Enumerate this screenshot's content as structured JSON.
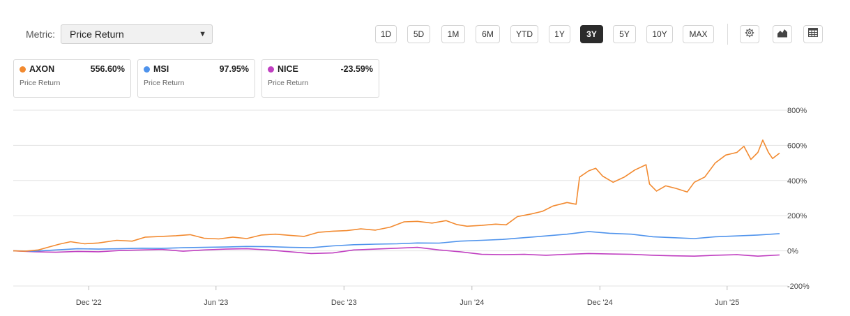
{
  "metric": {
    "label": "Metric:",
    "value": "Price Return"
  },
  "ranges": [
    "1D",
    "5D",
    "1M",
    "6M",
    "YTD",
    "1Y",
    "3Y",
    "5Y",
    "10Y",
    "MAX"
  ],
  "active_range": "3Y",
  "tools": [
    "settings-icon",
    "chart-type-icon",
    "table-icon"
  ],
  "cards": [
    {
      "ticker": "AXON",
      "value": "556.60%",
      "metric": "Price Return",
      "color": "#f28a30"
    },
    {
      "ticker": "MSI",
      "value": "97.95%",
      "metric": "Price Return",
      "color": "#4f93ec"
    },
    {
      "ticker": "NICE",
      "value": "-23.59%",
      "metric": "Price Return",
      "color": "#c03fc1"
    }
  ],
  "chart_data": {
    "type": "line",
    "x_ticks": [
      "Dec '22",
      "Jun '23",
      "Dec '23",
      "Jun '24",
      "Dec '24",
      "Jun '25"
    ],
    "x_tick_dates": [
      "2022-12-01",
      "2023-06-01",
      "2023-12-01",
      "2024-06-01",
      "2024-12-01",
      "2025-06-01"
    ],
    "xlim": [
      "2022-08-15",
      "2025-08-15"
    ],
    "y_ticks": [
      "800%",
      "600%",
      "400%",
      "200%",
      "0%",
      "-200%"
    ],
    "ylim": [
      -200,
      800
    ],
    "grid": true,
    "series": [
      {
        "name": "AXON",
        "color": "#f28a30",
        "points": [
          [
            "2022-08-15",
            0
          ],
          [
            "2022-09-01",
            -2
          ],
          [
            "2022-09-20",
            5
          ],
          [
            "2022-10-05",
            22
          ],
          [
            "2022-10-20",
            38
          ],
          [
            "2022-11-05",
            52
          ],
          [
            "2022-11-25",
            40
          ],
          [
            "2022-12-15",
            45
          ],
          [
            "2023-01-10",
            60
          ],
          [
            "2023-02-01",
            55
          ],
          [
            "2023-02-20",
            78
          ],
          [
            "2023-03-15",
            82
          ],
          [
            "2023-04-05",
            86
          ],
          [
            "2023-04-25",
            92
          ],
          [
            "2023-05-15",
            72
          ],
          [
            "2023-06-05",
            68
          ],
          [
            "2023-06-25",
            78
          ],
          [
            "2023-07-15",
            70
          ],
          [
            "2023-08-05",
            90
          ],
          [
            "2023-08-25",
            95
          ],
          [
            "2023-09-15",
            88
          ],
          [
            "2023-10-05",
            82
          ],
          [
            "2023-10-25",
            105
          ],
          [
            "2023-11-15",
            112
          ],
          [
            "2023-12-05",
            115
          ],
          [
            "2023-12-25",
            125
          ],
          [
            "2024-01-15",
            118
          ],
          [
            "2024-02-05",
            135
          ],
          [
            "2024-02-25",
            165
          ],
          [
            "2024-03-15",
            168
          ],
          [
            "2024-04-05",
            158
          ],
          [
            "2024-04-25",
            172
          ],
          [
            "2024-05-10",
            150
          ],
          [
            "2024-05-25",
            140
          ],
          [
            "2024-06-15",
            145
          ],
          [
            "2024-07-05",
            152
          ],
          [
            "2024-07-20",
            148
          ],
          [
            "2024-08-05",
            195
          ],
          [
            "2024-08-25",
            210
          ],
          [
            "2024-09-10",
            225
          ],
          [
            "2024-09-25",
            255
          ],
          [
            "2024-10-15",
            275
          ],
          [
            "2024-10-28",
            265
          ],
          [
            "2024-11-02",
            420
          ],
          [
            "2024-11-15",
            455
          ],
          [
            "2024-11-25",
            470
          ],
          [
            "2024-12-05",
            425
          ],
          [
            "2024-12-20",
            390
          ],
          [
            "2025-01-05",
            420
          ],
          [
            "2025-01-20",
            460
          ],
          [
            "2025-02-05",
            490
          ],
          [
            "2025-02-10",
            380
          ],
          [
            "2025-02-20",
            340
          ],
          [
            "2025-03-05",
            370
          ],
          [
            "2025-03-20",
            355
          ],
          [
            "2025-04-05",
            335
          ],
          [
            "2025-04-15",
            390
          ],
          [
            "2025-04-30",
            420
          ],
          [
            "2025-05-15",
            500
          ],
          [
            "2025-05-30",
            545
          ],
          [
            "2025-06-15",
            560
          ],
          [
            "2025-06-25",
            595
          ],
          [
            "2025-07-05",
            520
          ],
          [
            "2025-07-15",
            560
          ],
          [
            "2025-07-22",
            630
          ],
          [
            "2025-07-30",
            560
          ],
          [
            "2025-08-05",
            525
          ],
          [
            "2025-08-15",
            556
          ]
        ]
      },
      {
        "name": "MSI",
        "color": "#4f93ec",
        "points": [
          [
            "2022-08-15",
            0
          ],
          [
            "2022-09-15",
            -2
          ],
          [
            "2022-10-15",
            5
          ],
          [
            "2022-11-15",
            12
          ],
          [
            "2022-12-15",
            10
          ],
          [
            "2023-01-15",
            12
          ],
          [
            "2023-02-15",
            15
          ],
          [
            "2023-03-15",
            14
          ],
          [
            "2023-04-15",
            18
          ],
          [
            "2023-05-15",
            20
          ],
          [
            "2023-06-15",
            22
          ],
          [
            "2023-07-15",
            25
          ],
          [
            "2023-08-15",
            24
          ],
          [
            "2023-09-15",
            20
          ],
          [
            "2023-10-15",
            18
          ],
          [
            "2023-11-15",
            28
          ],
          [
            "2023-12-15",
            35
          ],
          [
            "2024-01-15",
            38
          ],
          [
            "2024-02-15",
            40
          ],
          [
            "2024-03-15",
            45
          ],
          [
            "2024-04-15",
            44
          ],
          [
            "2024-05-15",
            55
          ],
          [
            "2024-06-15",
            60
          ],
          [
            "2024-07-15",
            65
          ],
          [
            "2024-08-15",
            75
          ],
          [
            "2024-09-15",
            85
          ],
          [
            "2024-10-15",
            95
          ],
          [
            "2024-11-15",
            110
          ],
          [
            "2024-12-15",
            100
          ],
          [
            "2025-01-15",
            95
          ],
          [
            "2025-02-15",
            80
          ],
          [
            "2025-03-15",
            75
          ],
          [
            "2025-04-15",
            70
          ],
          [
            "2025-05-15",
            80
          ],
          [
            "2025-06-15",
            85
          ],
          [
            "2025-07-15",
            90
          ],
          [
            "2025-08-15",
            98
          ]
        ]
      },
      {
        "name": "NICE",
        "color": "#c03fc1",
        "points": [
          [
            "2022-08-15",
            0
          ],
          [
            "2022-09-15",
            -5
          ],
          [
            "2022-10-15",
            -8
          ],
          [
            "2022-11-15",
            -3
          ],
          [
            "2022-12-15",
            -5
          ],
          [
            "2023-01-15",
            2
          ],
          [
            "2023-02-15",
            5
          ],
          [
            "2023-03-15",
            8
          ],
          [
            "2023-04-15",
            -2
          ],
          [
            "2023-05-15",
            5
          ],
          [
            "2023-06-15",
            10
          ],
          [
            "2023-07-15",
            12
          ],
          [
            "2023-08-15",
            5
          ],
          [
            "2023-09-15",
            -5
          ],
          [
            "2023-10-15",
            -15
          ],
          [
            "2023-11-15",
            -12
          ],
          [
            "2023-12-15",
            5
          ],
          [
            "2024-01-15",
            10
          ],
          [
            "2024-02-15",
            15
          ],
          [
            "2024-03-15",
            20
          ],
          [
            "2024-04-15",
            5
          ],
          [
            "2024-05-15",
            -5
          ],
          [
            "2024-06-15",
            -20
          ],
          [
            "2024-07-15",
            -22
          ],
          [
            "2024-08-15",
            -20
          ],
          [
            "2024-09-15",
            -25
          ],
          [
            "2024-10-15",
            -20
          ],
          [
            "2024-11-15",
            -15
          ],
          [
            "2024-12-15",
            -18
          ],
          [
            "2025-01-15",
            -20
          ],
          [
            "2025-02-15",
            -25
          ],
          [
            "2025-03-15",
            -28
          ],
          [
            "2025-04-15",
            -30
          ],
          [
            "2025-05-15",
            -25
          ],
          [
            "2025-06-15",
            -22
          ],
          [
            "2025-07-15",
            -30
          ],
          [
            "2025-08-15",
            -23.59
          ]
        ]
      }
    ]
  }
}
